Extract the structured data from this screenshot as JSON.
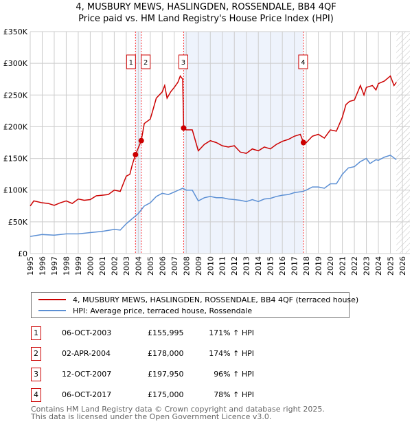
{
  "chart_data": {
    "type": "line",
    "title": "4, MUSBURY MEWS, HASLINGDEN, ROSSENDALE, BB4 4QF",
    "subtitle": "Price paid vs. HM Land Registry's House Price Index (HPI)",
    "xlim": [
      1995,
      2026
    ],
    "ylim": [
      0,
      350000
    ],
    "x_ticks": [
      "1995",
      "1996",
      "1997",
      "1998",
      "1999",
      "2000",
      "2001",
      "2002",
      "2003",
      "2004",
      "2005",
      "2006",
      "2007",
      "2008",
      "2009",
      "2010",
      "2011",
      "2012",
      "2013",
      "2014",
      "2015",
      "2016",
      "2017",
      "2018",
      "2019",
      "2020",
      "2021",
      "2022",
      "2023",
      "2024",
      "2025",
      "2026"
    ],
    "y_ticks": [
      {
        "v": 0,
        "label": "£0"
      },
      {
        "v": 50000,
        "label": "£50K"
      },
      {
        "v": 100000,
        "label": "£100K"
      },
      {
        "v": 150000,
        "label": "£150K"
      },
      {
        "v": 200000,
        "label": "£200K"
      },
      {
        "v": 250000,
        "label": "£250K"
      },
      {
        "v": 300000,
        "label": "£300K"
      },
      {
        "v": 350000,
        "label": "£350K"
      }
    ],
    "grid": true,
    "series": [
      {
        "name": "4, MUSBURY MEWS, HASLINGDEN, ROSSENDALE, BB4 4QF (terraced house)",
        "color": "#cc0000",
        "points": [
          [
            1995,
            75
          ],
          [
            1995.3,
            83
          ],
          [
            1996,
            80
          ],
          [
            1996.5,
            79
          ],
          [
            1997,
            76
          ],
          [
            1997.5,
            80
          ],
          [
            1998,
            83
          ],
          [
            1998.5,
            79
          ],
          [
            1999,
            86
          ],
          [
            1999.5,
            84
          ],
          [
            2000,
            85
          ],
          [
            2000.5,
            91
          ],
          [
            2001,
            92
          ],
          [
            2001.5,
            93
          ],
          [
            2002,
            100
          ],
          [
            2002.5,
            98
          ],
          [
            2003,
            122
          ],
          [
            2003.3,
            125
          ],
          [
            2003.5,
            140
          ],
          [
            2003.77,
            156
          ],
          [
            2004.25,
            178
          ],
          [
            2004.5,
            205
          ],
          [
            2005,
            212
          ],
          [
            2005.2,
            225
          ],
          [
            2005.5,
            245
          ],
          [
            2006,
            255
          ],
          [
            2006.2,
            265
          ],
          [
            2006.4,
            245
          ],
          [
            2006.7,
            255
          ],
          [
            2007,
            262
          ],
          [
            2007.3,
            270
          ],
          [
            2007.5,
            280
          ],
          [
            2007.7,
            275
          ],
          [
            2007.78,
            198
          ],
          [
            2008,
            195
          ],
          [
            2008.5,
            195
          ],
          [
            2009,
            162
          ],
          [
            2009.5,
            172
          ],
          [
            2010,
            178
          ],
          [
            2010.5,
            175
          ],
          [
            2011,
            170
          ],
          [
            2011.5,
            168
          ],
          [
            2012,
            170
          ],
          [
            2012.5,
            160
          ],
          [
            2013,
            158
          ],
          [
            2013.5,
            165
          ],
          [
            2014,
            162
          ],
          [
            2014.5,
            168
          ],
          [
            2015,
            165
          ],
          [
            2015.5,
            172
          ],
          [
            2016,
            177
          ],
          [
            2016.5,
            180
          ],
          [
            2017,
            185
          ],
          [
            2017.5,
            188
          ],
          [
            2017.76,
            175
          ],
          [
            2018,
            175
          ],
          [
            2018.5,
            185
          ],
          [
            2019,
            188
          ],
          [
            2019.5,
            182
          ],
          [
            2020,
            195
          ],
          [
            2020.5,
            193
          ],
          [
            2021,
            215
          ],
          [
            2021.3,
            235
          ],
          [
            2021.6,
            240
          ],
          [
            2022,
            242
          ],
          [
            2022.5,
            265
          ],
          [
            2022.8,
            250
          ],
          [
            2023,
            262
          ],
          [
            2023.5,
            265
          ],
          [
            2023.8,
            258
          ],
          [
            2024,
            268
          ],
          [
            2024.5,
            272
          ],
          [
            2025,
            280
          ],
          [
            2025.3,
            265
          ],
          [
            2025.5,
            270
          ]
        ]
      },
      {
        "name": "HPI: Average price, terraced house, Rossendale",
        "color": "#5b8fd4",
        "points": [
          [
            1995,
            27
          ],
          [
            1996,
            30
          ],
          [
            1997,
            29
          ],
          [
            1998,
            31
          ],
          [
            1999,
            31
          ],
          [
            2000,
            33
          ],
          [
            2001,
            35
          ],
          [
            2002,
            38
          ],
          [
            2002.5,
            37
          ],
          [
            2003,
            47
          ],
          [
            2003.5,
            55
          ],
          [
            2004,
            63
          ],
          [
            2004.5,
            75
          ],
          [
            2005,
            80
          ],
          [
            2005.5,
            90
          ],
          [
            2006,
            95
          ],
          [
            2006.5,
            93
          ],
          [
            2007,
            97
          ],
          [
            2007.7,
            103
          ],
          [
            2008,
            100
          ],
          [
            2008.5,
            100
          ],
          [
            2009,
            83
          ],
          [
            2009.5,
            88
          ],
          [
            2010,
            90
          ],
          [
            2010.5,
            88
          ],
          [
            2011,
            88
          ],
          [
            2011.5,
            86
          ],
          [
            2012,
            85
          ],
          [
            2012.5,
            84
          ],
          [
            2013,
            82
          ],
          [
            2013.5,
            85
          ],
          [
            2014,
            82
          ],
          [
            2014.5,
            86
          ],
          [
            2015,
            87
          ],
          [
            2015.5,
            90
          ],
          [
            2016,
            92
          ],
          [
            2016.5,
            93
          ],
          [
            2017,
            96
          ],
          [
            2017.7,
            98
          ],
          [
            2018,
            100
          ],
          [
            2018.5,
            105
          ],
          [
            2019,
            105
          ],
          [
            2019.5,
            103
          ],
          [
            2020,
            110
          ],
          [
            2020.5,
            110
          ],
          [
            2021,
            125
          ],
          [
            2021.5,
            135
          ],
          [
            2022,
            137
          ],
          [
            2022.5,
            145
          ],
          [
            2023,
            150
          ],
          [
            2023.3,
            142
          ],
          [
            2023.8,
            148
          ],
          [
            2024,
            147
          ],
          [
            2024.5,
            152
          ],
          [
            2025,
            155
          ],
          [
            2025.5,
            148
          ]
        ]
      }
    ],
    "sales": [
      {
        "n": "1",
        "x": 2003.77,
        "date": "06-OCT-2003",
        "price": "£155,995",
        "value": 155995,
        "hpi": "171% ↑ HPI"
      },
      {
        "n": "2",
        "x": 2004.25,
        "date": "02-APR-2004",
        "price": "£178,000",
        "value": 178000,
        "hpi": "174% ↑ HPI"
      },
      {
        "n": "3",
        "x": 2007.78,
        "date": "12-OCT-2007",
        "price": "£197,950",
        "value": 197950,
        "hpi": "96% ↑ HPI"
      },
      {
        "n": "4",
        "x": 2017.76,
        "date": "06-OCT-2017",
        "price": "£175,000",
        "value": 175000,
        "hpi": "78% ↑ HPI"
      }
    ],
    "shaded": [
      [
        2003.77,
        2004.25
      ],
      [
        2007.78,
        2017.76
      ]
    ],
    "forecast_from": 2025.5,
    "legend_position": "bottom"
  },
  "footer": {
    "line1": "Contains HM Land Registry data © Crown copyright and database right 2025.",
    "line2": "This data is licensed under the Open Government Licence v3.0."
  }
}
